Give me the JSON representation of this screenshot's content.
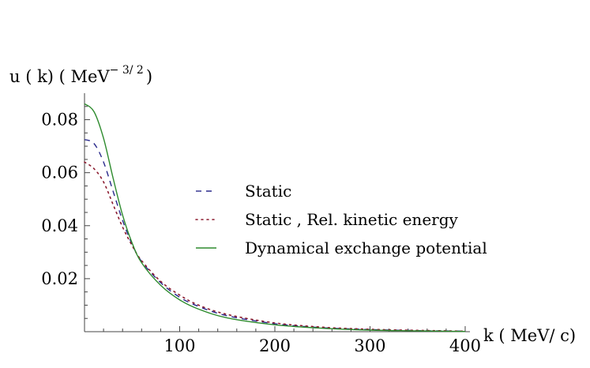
{
  "chart_data": {
    "type": "line",
    "title": "",
    "ylabel": "u ( k) ( MeV",
    "ylabel_exponent": "− 3/ 2",
    "ylabel_close": ")",
    "xlabel": "k ( MeV/ c)",
    "xlim": [
      0,
      405
    ],
    "ylim": [
      0,
      0.09
    ],
    "x_ticks": [
      100,
      200,
      300,
      400
    ],
    "x_tick_labels": [
      "100",
      "200",
      "300",
      "400"
    ],
    "y_ticks": [
      0.02,
      0.04,
      0.06,
      0.08
    ],
    "y_tick_labels": [
      "0.02",
      "0.04",
      "0.06",
      "0.08"
    ],
    "grid": false,
    "legend_position": "center-right",
    "series": [
      {
        "name": "Static",
        "style": "dashed",
        "color": "#2a2a8c",
        "x": [
          0,
          10,
          20,
          30,
          40,
          50,
          60,
          80,
          100,
          120,
          150,
          200,
          250,
          300,
          350,
          400
        ],
        "y": [
          0.0725,
          0.071,
          0.064,
          0.053,
          0.042,
          0.033,
          0.0265,
          0.0185,
          0.013,
          0.0095,
          0.006,
          0.003,
          0.0015,
          0.0008,
          0.0004,
          0.0002
        ]
      },
      {
        "name": "Static , Rel. kinetic energy",
        "style": "dotted",
        "color": "#8b1a2e",
        "x": [
          0,
          10,
          20,
          30,
          40,
          50,
          60,
          80,
          100,
          120,
          150,
          200,
          250,
          300,
          350,
          400
        ],
        "y": [
          0.064,
          0.0615,
          0.0565,
          0.048,
          0.0395,
          0.0325,
          0.0268,
          0.019,
          0.0138,
          0.01,
          0.0065,
          0.0033,
          0.0017,
          0.0009,
          0.0005,
          0.0002
        ]
      },
      {
        "name": "Dynamical exchange potential",
        "style": "solid",
        "color": "#2e8b2e",
        "x": [
          0,
          10,
          20,
          30,
          40,
          50,
          60,
          80,
          100,
          120,
          150,
          200,
          250,
          300,
          350,
          400
        ],
        "y": [
          0.086,
          0.083,
          0.073,
          0.058,
          0.044,
          0.0335,
          0.026,
          0.0175,
          0.012,
          0.0085,
          0.0052,
          0.0026,
          0.0013,
          0.0006,
          0.0003,
          0.0001
        ]
      }
    ]
  }
}
